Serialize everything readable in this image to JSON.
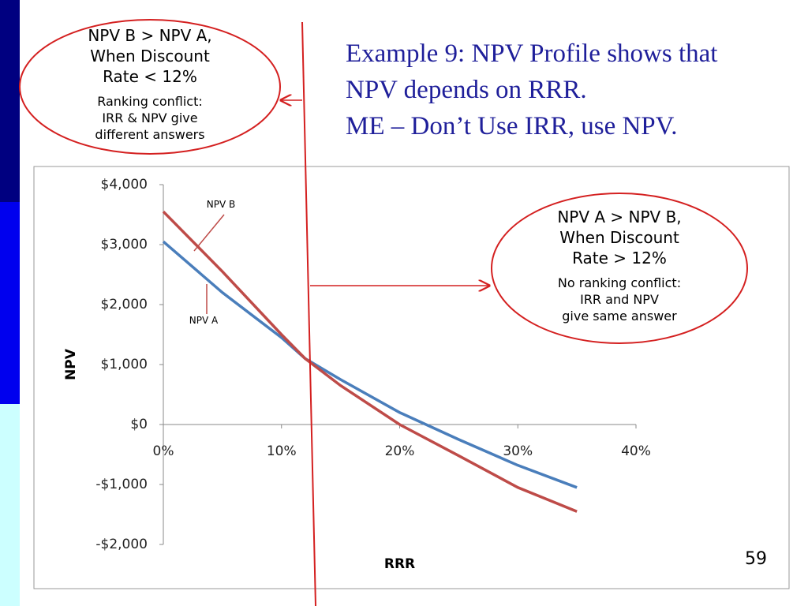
{
  "slide": {
    "title_lines": [
      "Example 9: NPV Profile shows that",
      "NPV depends on RRR.",
      "ME – Don’t Use IRR, use NPV."
    ],
    "callout_left": [
      "NPV B > NPV A,",
      "When Discount",
      "Rate < 12%",
      "Ranking conflict:",
      "IRR & NPV give",
      "different answers"
    ],
    "callout_right": [
      "NPV A > NPV B,",
      "When Discount",
      "Rate > 12%",
      "No ranking conflict:",
      "IRR and NPV",
      "give same answer"
    ],
    "page_number": "59"
  },
  "chart_data": {
    "type": "line",
    "x_label": "RRR",
    "y_label": "NPV",
    "x": [
      0,
      5,
      10,
      12,
      15,
      20,
      25,
      30,
      35
    ],
    "series": [
      {
        "name": "NPV A",
        "color": "#4a7ebb",
        "values": [
          3050,
          2200,
          1450,
          1100,
          750,
          200,
          -250,
          -680,
          -1050
        ]
      },
      {
        "name": "NPV B",
        "color": "#be4b48",
        "values": [
          3550,
          2550,
          1500,
          1100,
          650,
          0,
          -520,
          -1050,
          -1450
        ]
      }
    ],
    "xlim": [
      0,
      40
    ],
    "xticks": [
      {
        "value": 0,
        "label": "0%"
      },
      {
        "value": 10,
        "label": "10%"
      },
      {
        "value": 20,
        "label": "20%"
      },
      {
        "value": 30,
        "label": "30%"
      },
      {
        "value": 40,
        "label": "40%"
      }
    ],
    "ylim": [
      -2000,
      4000
    ],
    "yticks": [
      {
        "value": 4000,
        "label": "$4,000"
      },
      {
        "value": 3000,
        "label": "$3,000"
      },
      {
        "value": 2000,
        "label": "$2,000"
      },
      {
        "value": 1000,
        "label": "$1,000"
      },
      {
        "value": 0,
        "label": "$0"
      },
      {
        "value": -1000,
        "label": "-$1,000"
      },
      {
        "value": -2000,
        "label": "-$2,000"
      }
    ],
    "grid": false
  }
}
